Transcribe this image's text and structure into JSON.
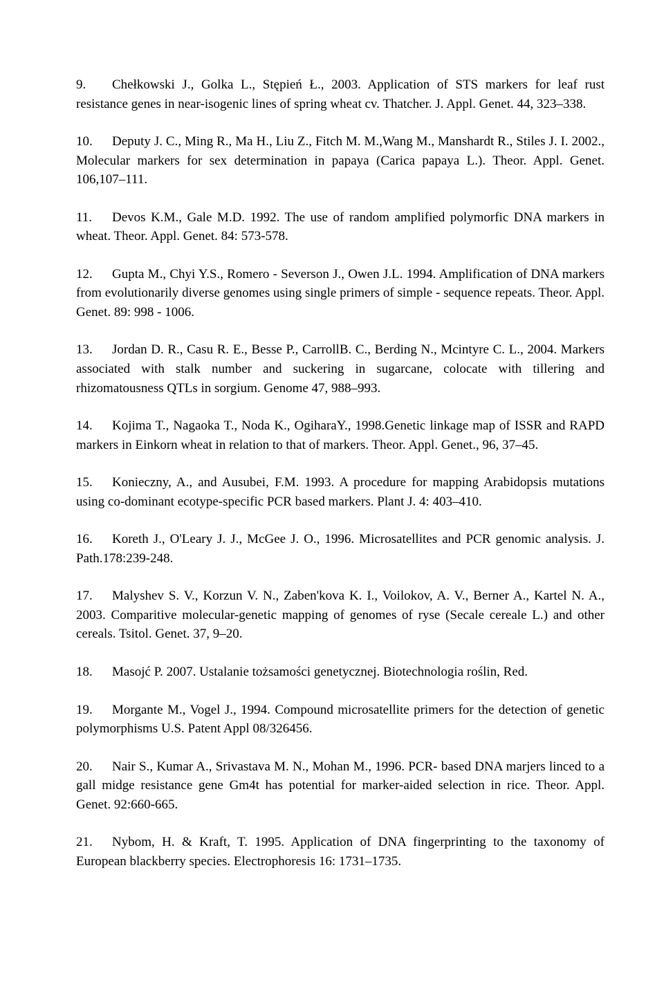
{
  "references": [
    {
      "num": "9.",
      "text": "Chełkowski J., Golka L., Stępień Ł., 2003. Application of STS markers for leaf rust resistance genes in near-isogenic lines of spring wheat cv. Thatcher. J. Appl. Genet. 44, 323–338."
    },
    {
      "num": "10.",
      "text": "Deputy J. C., Ming R., Ma H., Liu Z., Fitch M. M.,Wang M., Manshardt R., Stiles J. I. 2002., Molecular markers for sex determination in papaya (Carica papaya L.). Theor. Appl. Genet. 106,107–111."
    },
    {
      "num": "11.",
      "text": "Devos K.M., Gale M.D. 1992. The use of random amplified polymorfic DNA markers in wheat. Theor. Appl. Genet. 84: 573-578."
    },
    {
      "num": "12.",
      "text": "Gupta M., Chyi Y.S., Romero - Severson J., Owen J.L. 1994. Amplification of DNA markers from evolutionarily diverse genomes using single primers of simple - sequence repeats. Theor. Appl. Genet. 89: 998 - 1006."
    },
    {
      "num": "13.",
      "text": "Jordan D. R., Casu R. E., Besse P., CarrollB. C., Berding N., Mcintyre C. L., 2004. Markers associated with stalk number and suckering in sugarcane, colocate with tillering and rhizomatousness QTLs in sorgium. Genome 47, 988–993."
    },
    {
      "num": "14.",
      "text": "Kojima T., Nagaoka T., Noda K., OgiharaY., 1998.Genetic linkage map of ISSR and RAPD markers in Einkorn wheat in relation to that of markers. Theor. Appl. Genet., 96, 37–45."
    },
    {
      "num": "15.",
      "text": "Konieczny, A., and Ausubei, F.M. 1993. A procedure for mapping Arabidopsis mutations using co-dominant ecotype-specific PCR based markers. Plant J. 4: 403–410."
    },
    {
      "num": "16.",
      "text": "Koreth J., O'Leary J. J., McGee J. O., 1996. Microsatellites and PCR genomic analysis. J. Path.178:239-248."
    },
    {
      "num": "17.",
      "text": "Malyshev S. V., Korzun V. N., Zaben'kova K. I., Voilokov, A. V., Berner A., Kartel N. A., 2003. Comparitive molecular-genetic mapping of genomes of ryse (Secale cereale L.) and other cereals. Tsitol. Genet. 37, 9–20."
    },
    {
      "num": "18.",
      "text": "Masojć P. 2007. Ustalanie tożsamości genetycznej. Biotechnologia roślin, Red."
    },
    {
      "num": "19.",
      "text": "Morgante M., Vogel J., 1994. Compound microsatellite primers for the detection of genetic polymorphisms U.S. Patent Appl 08/326456."
    },
    {
      "num": "20.",
      "text": "Nair S., Kumar A., Srivastava M. N., Mohan M., 1996. PCR- based DNA marjers linced to a gall midge resistance gene Gm4t has potential for marker-aided selection in rice. Theor. Appl. Genet. 92:660-665."
    },
    {
      "num": "21.",
      "text": "Nybom, H. & Kraft, T. 1995. Application of DNA fingerprinting to the taxonomy of European blackberry species. Electrophoresis 16: 1731–1735."
    }
  ]
}
